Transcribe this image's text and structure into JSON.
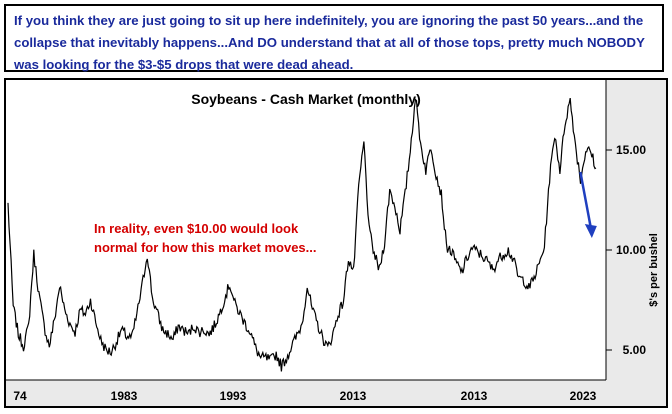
{
  "header": {
    "text": "If you think they are just going to sit up here indefinitely, you are ignoring the past 50 years...and the collapse that inevitably happens...And DO understand that at all of those tops, pretty much NOBODY was looking for the $3-$5 drops that were dead ahead."
  },
  "chart_data": {
    "type": "line",
    "title": "Soybeans - Cash Market (monthly)",
    "ylabel": "$'s per bushel",
    "xlabel": "",
    "annotation": [
      "In reality, even $10.00 would look",
      "normal for how this market moves..."
    ],
    "x_tick_labels": [
      "74",
      "1983",
      "1993",
      "2013",
      "2013",
      "2023"
    ],
    "y_ticks": [
      5,
      10,
      15
    ],
    "y_tick_labels": [
      "5.00",
      "10.00",
      "15.00"
    ],
    "ylim": [
      3.5,
      18.5
    ],
    "grid": false,
    "legend": "none",
    "colors": {
      "line": "#000000",
      "arrow": "#1f3fbf",
      "annotation": "#d40000",
      "header_text": "#1a2a9c",
      "plot_bg": "#ffffff",
      "frame_bg": "#eaeaea"
    },
    "series": [
      {
        "values": [
          12.3,
          7.2,
          5.8,
          5.2,
          6.2,
          9.8,
          7.8,
          6.2,
          5.2,
          6.5,
          8.2,
          7.0,
          6.3,
          5.9,
          7.0,
          6.8,
          7.5,
          6.4,
          5.5,
          5.0,
          4.9,
          5.4,
          6.0,
          5.7,
          5.6,
          6.8,
          8.2,
          9.8,
          7.6,
          6.8,
          6.0,
          5.8,
          5.5,
          6.2,
          6.0,
          5.8,
          6.2,
          5.9,
          6.0,
          5.8,
          6.2,
          6.8,
          7.6,
          8.3,
          7.3,
          6.8,
          6.3,
          5.9,
          5.1,
          4.6,
          4.6,
          4.5,
          4.8,
          4.2,
          4.6,
          5.2,
          5.7,
          6.3,
          8.2,
          7.0,
          6.3,
          5.6,
          5.1,
          5.8,
          6.8,
          7.4,
          9.6,
          8.9,
          13.2,
          15.4,
          11.0,
          9.8,
          9.0,
          10.4,
          13.0,
          12.2,
          11.0,
          12.8,
          15.0,
          17.7,
          15.3,
          14.0,
          15.2,
          13.8,
          12.8,
          10.2,
          9.9,
          9.3,
          8.9,
          9.6,
          10.1,
          9.9,
          9.7,
          9.4,
          9.0,
          9.5,
          9.8,
          10.0,
          9.5,
          8.6,
          8.5,
          8.1,
          8.6,
          9.3,
          10.2,
          13.6,
          15.8,
          14.0,
          16.4,
          17.5,
          15.3,
          13.5,
          15.0,
          14.9,
          14.1
        ]
      }
    ],
    "arrow": {
      "from": {
        "x": 2023.3,
        "y": 13.9
      },
      "to": {
        "x": 2024.2,
        "y": 10.7
      }
    }
  }
}
